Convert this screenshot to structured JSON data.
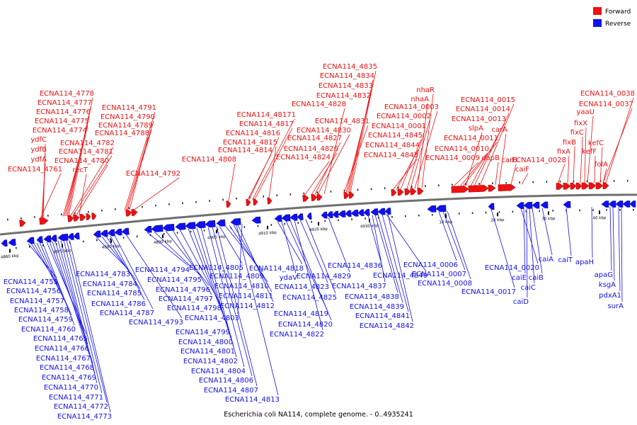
{
  "caption": "Escherichia coli NA114, complete genome. - 0..4935241",
  "legend": [
    {
      "label": "Forward",
      "color": "#ee1111"
    },
    {
      "label": "Reverse",
      "color": "#1111ee"
    }
  ],
  "colors": {
    "forward": "#ee1111",
    "reverse": "#1111ee",
    "backbone": "#707070"
  },
  "scale_labels": [
    "4860 kbp",
    "4870 kbp",
    "4880 kbp",
    "4890 kbp",
    "4900 kbp",
    "4910 kbp",
    "4920 kbp",
    "4930 kbp",
    "10 kbp",
    "20 kbp",
    "30 kbp",
    "40 kbp"
  ],
  "forward_genes": [
    "ECNA114_4778",
    "ECNA114_4777",
    "ECNA114_4776",
    "ECNA114_4775",
    "ECNA114_4774",
    "ydfC",
    "ydfB",
    "ydfA",
    "ECNA114_4761",
    "ECNA114_4782",
    "ECNA114_4781",
    "ECNA114_4780",
    "recT",
    "ECNA114_4791",
    "ECNA114_4790",
    "ECNA114_4789",
    "ECNA114_4788",
    "ECNA114_4792",
    "ECNA114_4808",
    "ECNA114_48171",
    "ECNA114_4817",
    "ECNA114_4816",
    "ECNA114_4815",
    "ECNA114_4814",
    "ECNA114_4835",
    "ECNA114_4834",
    "ECNA114_4833",
    "ECNA114_4832",
    "ECNA114_4828",
    "ECNA114_4831",
    "ECNA114_4830",
    "ECNA114_4827",
    "ECNA114_4826",
    "ECNA114_4824",
    "nhaR",
    "nhaA",
    "ECNA114_0003",
    "ECNA114_0002",
    "ECNA114_0001",
    "ECNA114_4845",
    "ECNA114_4844",
    "ECNA114_4843",
    "ECNA114_0015",
    "ECNA114_0014",
    "ECNA114_0013",
    "slpA",
    "carA",
    "ECNA114_0011",
    "ECNA114_0010",
    "dapB",
    "ECNA114_0009",
    "carB",
    "caiF",
    "ECNA114_0038",
    "ECNA114_0037",
    "yaaU",
    "fixX",
    "fixC",
    "fixB",
    "kefC",
    "fixA",
    "kefF",
    "ECNA114_0028",
    "folA"
  ],
  "reverse_genes": [
    "ECNA114_4755",
    "ECNA114_4756",
    "ECNA114_4757",
    "ECNA114_4758",
    "ECNA114_4759",
    "ECNA114_4760",
    "ECNA114_4765",
    "ECNA114_4766",
    "ECNA114_4767",
    "ECNA114_4768",
    "ECNA114_4769",
    "ECNA114_4770",
    "ECNA114_4771",
    "ECNA114_4772",
    "ECNA114_4773",
    "ECNA114_4783",
    "ECNA114_4784",
    "ECNA114_4785",
    "ECNA114_4786",
    "ECNA114_4787",
    "ECNA114_4793",
    "ECNA114_4794",
    "ECNA114_4795",
    "ECNA114_4796",
    "ECNA114_4797",
    "ECNA114_4798",
    "ECNA114_4799",
    "ECNA114_4800",
    "ECNA114_4801",
    "ECNA114_4802",
    "ECNA114_4804",
    "ECNA114_4806",
    "ECNA114_4807",
    "ECNA114_4813",
    "ECNA114_4805",
    "ECNA114_4809",
    "ECNA114_4810",
    "ECNA114_4811",
    "ECNA114_4812",
    "ECNA114_4803",
    "ECNA114_4818",
    "ydaV",
    "ECNA114_4823",
    "ECNA114_4819",
    "ECNA114_4820",
    "ECNA114_4822",
    "ECNA114_4829",
    "ECNA114_4825",
    "ECNA114_4836",
    "ECNA114_4840",
    "ECNA114_4837",
    "ECNA114_4838",
    "ECNA114_4839",
    "ECNA114_4841",
    "ECNA114_4842",
    "ECNA114_0006",
    "ECNA114_0007",
    "ECNA114_0008",
    "ECNA114_0017",
    "ECNA114_0020",
    "caiE",
    "caiB",
    "caiC",
    "caiD",
    "caiA",
    "caiT",
    "apaH",
    "apaG",
    "ksgA",
    "pdxA1",
    "surA"
  ]
}
